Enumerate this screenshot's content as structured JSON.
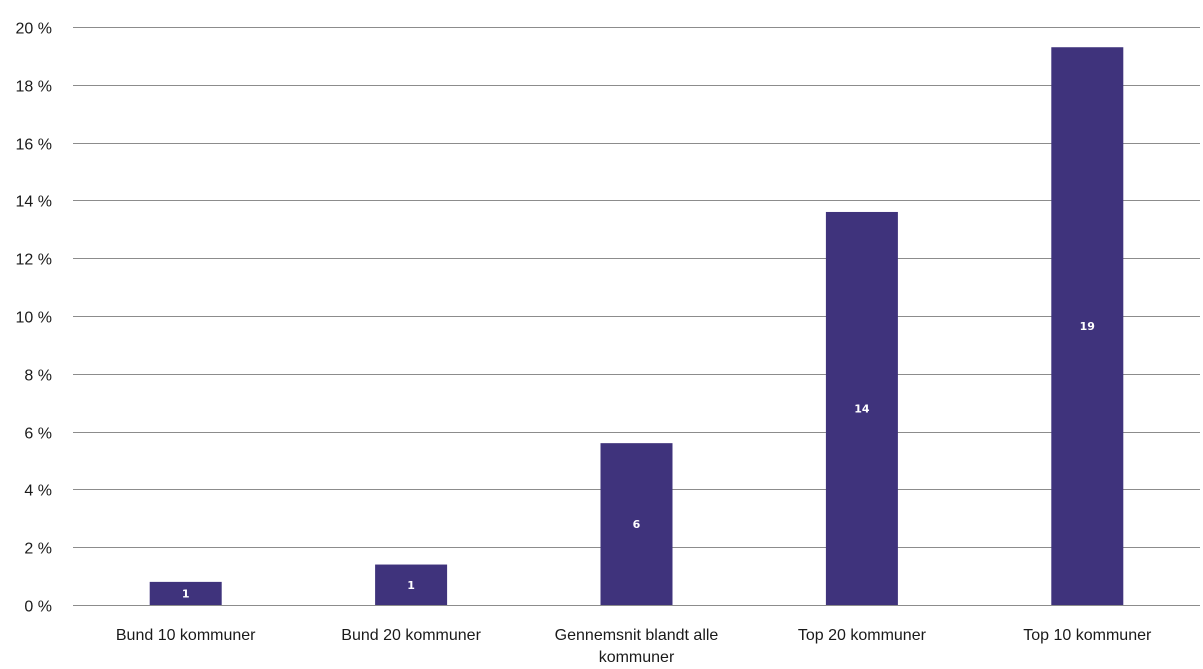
{
  "chart_data": {
    "type": "bar",
    "title": "",
    "xlabel": "",
    "ylabel": "",
    "categories": [
      [
        "Bund 10 kommuner"
      ],
      [
        "Bund 20 kommuner"
      ],
      [
        "Gennemsnit blandt alle",
        "kommuner"
      ],
      [
        "Top 20 kommuner"
      ],
      [
        "Top 10 kommuner"
      ]
    ],
    "values": [
      0.8,
      1.4,
      5.6,
      13.6,
      19.3
    ],
    "data_labels": [
      "1",
      "1",
      "6",
      "14",
      "19"
    ],
    "ylim": [
      0,
      20
    ],
    "yticks": [
      0,
      2,
      4,
      6,
      8,
      10,
      12,
      14,
      16,
      18,
      20
    ],
    "ytick_labels": [
      "0 %",
      "2 %",
      "4 %",
      "6 %",
      "8 %",
      "10 %",
      "12 %",
      "14 %",
      "16 %",
      "18 %",
      "20 %"
    ],
    "grid": true,
    "bar_color": "#3f337c",
    "grid_color": "#8c8c8c"
  }
}
